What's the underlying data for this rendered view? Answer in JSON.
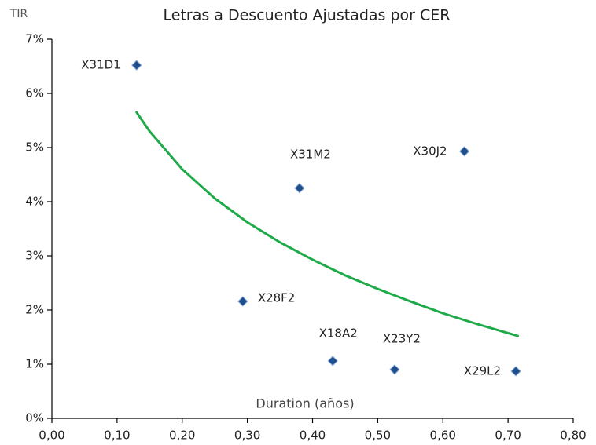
{
  "chart_data": {
    "type": "scatter",
    "title": "Letras a Descuento Ajustadas por CER",
    "y_label": "TIR",
    "x_label": "Duration (años)",
    "labels": [
      "X31D1",
      "X31M2",
      "X30J2",
      "X28F2",
      "X18A2",
      "X23Y2",
      "X29L2"
    ],
    "x": [
      0.13,
      0.38,
      0.633,
      0.293,
      0.431,
      0.526,
      0.712
    ],
    "values": [
      6.52,
      4.25,
      4.93,
      2.16,
      1.06,
      0.9,
      0.87
    ],
    "color": "#1f4e8c",
    "trendline": {
      "type": "line",
      "color": "#1faa4a",
      "x": [
        0.13,
        0.15,
        0.2,
        0.25,
        0.3,
        0.35,
        0.4,
        0.45,
        0.5,
        0.55,
        0.6,
        0.65,
        0.715
      ],
      "values": [
        5.65,
        5.3,
        4.6,
        4.06,
        3.62,
        3.25,
        2.93,
        2.64,
        2.39,
        2.16,
        1.94,
        1.75,
        1.52
      ]
    },
    "xlim": [
      0,
      0.8
    ],
    "xticks": [
      {
        "value": 0,
        "label": "0,00"
      },
      {
        "value": 0.1,
        "label": "0,10"
      },
      {
        "value": 0.2,
        "label": "0,20"
      },
      {
        "value": 0.3,
        "label": "0,30"
      },
      {
        "value": 0.4,
        "label": "0,40"
      },
      {
        "value": 0.5,
        "label": "0,50"
      },
      {
        "value": 0.6,
        "label": "0,60"
      },
      {
        "value": 0.7,
        "label": "0,70"
      },
      {
        "value": 0.8,
        "label": "0,80"
      }
    ],
    "ylim": [
      0,
      7
    ],
    "yticks": [
      {
        "value": 0,
        "label": "0%"
      },
      {
        "value": 1,
        "label": "1%"
      },
      {
        "value": 2,
        "label": "2%"
      },
      {
        "value": 3,
        "label": "3%"
      },
      {
        "value": 4,
        "label": "4%"
      },
      {
        "value": 5,
        "label": "5%"
      },
      {
        "value": 6,
        "label": "6%"
      },
      {
        "value": 7,
        "label": "7%"
      }
    ],
    "grid": false
  }
}
